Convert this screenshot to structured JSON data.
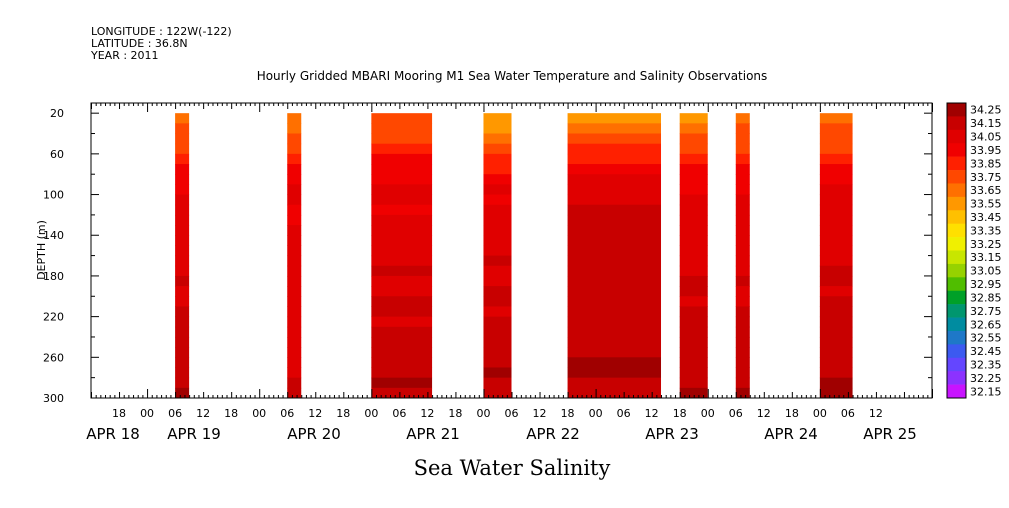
{
  "header": {
    "longitude": "LONGITUDE : 122W(-122)",
    "latitude": "LATITUDE : 36.8N",
    "year": "YEAR : 2011"
  },
  "chart_data": {
    "type": "heatmap",
    "title": "Hourly Gridded MBARI Mooring M1 Sea Water Temperature and Salinity Observations",
    "bottom_title": "Sea Water Salinity",
    "ylabel": "DEPTH (m)",
    "xlabel": "",
    "time_origin_label": "APR 18 00:00",
    "xlim_hours": [
      12,
      192
    ],
    "ylim": [
      300,
      10
    ],
    "y_ticks": [
      20,
      60,
      100,
      140,
      180,
      220,
      260,
      300
    ],
    "hour_labels": [
      "18",
      "00",
      "06",
      "12",
      "18",
      "00",
      "06",
      "12",
      "18",
      "00",
      "06",
      "12",
      "18",
      "00",
      "06",
      "12",
      "18",
      "00",
      "06",
      "12",
      "18",
      "00",
      "06",
      "12",
      "18",
      "00",
      "06",
      "12"
    ],
    "date_labels": [
      "APR 18",
      "APR 19",
      "APR 20",
      "APR 21",
      "APR 22",
      "APR 23",
      "APR 24",
      "APR 25"
    ],
    "colorbar": {
      "levels": [
        "34.25",
        "34.15",
        "34.05",
        "33.95",
        "33.85",
        "33.75",
        "33.65",
        "33.55",
        "33.45",
        "33.35",
        "33.25",
        "33.15",
        "33.05",
        "32.95",
        "32.85",
        "32.75",
        "32.65",
        "32.55",
        "32.45",
        "32.35",
        "32.25",
        "32.15"
      ],
      "colors": [
        "#a00000",
        "#c80000",
        "#e00000",
        "#f00000",
        "#ff2000",
        "#ff4800",
        "#ff7000",
        "#ff9800",
        "#ffc000",
        "#ffe000",
        "#f0f000",
        "#c8e600",
        "#96d200",
        "#50be00",
        "#00a028",
        "#00966e",
        "#008ca0",
        "#1e78c8",
        "#3c5af0",
        "#6446ff",
        "#8c32ff",
        "#c814ff"
      ]
    },
    "segments": [
      {
        "start": 30,
        "end": 33,
        "top": 33.6,
        "mid": 34.0,
        "deep": 34.2
      },
      {
        "start": 54,
        "end": 57,
        "top": 33.6,
        "mid": 34.0,
        "deep": 34.1
      },
      {
        "start": 72,
        "end": 85,
        "top": 33.7,
        "mid": 34.0,
        "deep": 34.2
      },
      {
        "start": 96,
        "end": 102,
        "top": 33.5,
        "mid": 34.0,
        "deep": 34.2
      },
      {
        "start": 114,
        "end": 134,
        "top": 33.5,
        "mid": 34.1,
        "deep": 34.2
      },
      {
        "start": 138,
        "end": 144,
        "top": 33.5,
        "mid": 34.0,
        "deep": 34.2
      },
      {
        "start": 150,
        "end": 153,
        "top": 33.6,
        "mid": 34.0,
        "deep": 34.2
      },
      {
        "start": 168,
        "end": 175,
        "top": 33.6,
        "mid": 34.0,
        "deep": 34.2
      }
    ]
  }
}
